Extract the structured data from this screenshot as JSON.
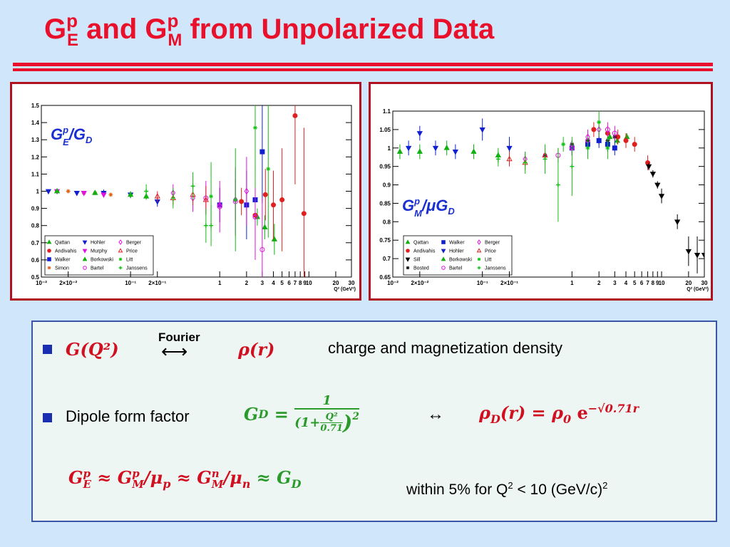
{
  "title": [
    "G",
    "p",
    "E",
    " and G",
    "p",
    "M",
    " from Unpolarized Data"
  ],
  "chart_data": [
    {
      "type": "scatter",
      "xlog": true,
      "xlim": [
        0.01,
        30
      ],
      "xticks": [
        {
          "value": 0.01,
          "label": "10⁻²"
        },
        {
          "value": 0.02,
          "label": "2×10⁻²"
        },
        {
          "value": 0.1,
          "label": "10⁻¹"
        },
        {
          "value": 0.2,
          "label": "2×10⁻¹"
        },
        1,
        2,
        3,
        4,
        5,
        6,
        7,
        8,
        9,
        10,
        20,
        30
      ],
      "ylim": [
        0.5,
        1.5
      ],
      "yticks": [
        0.5,
        0.6,
        0.7,
        0.8,
        0.9,
        1,
        1.1,
        1.2,
        1.3,
        1.4,
        1.5
      ],
      "xlabel": "Q² (GeV²)",
      "annotation": [
        "G",
        "p",
        "E",
        "/G",
        "D"
      ],
      "annotation_color": "#1a2fd0",
      "series": [
        {
          "name": "Qattan",
          "color": "#10b010",
          "marker": "triangle-up",
          "x": [
            2.64,
            3.2,
            4.1
          ],
          "values": [
            0.85,
            0.79,
            0.72
          ],
          "errors": [
            0.05,
            0.07,
            0.09
          ]
        },
        {
          "name": "Andivahis",
          "color": "#e02020",
          "marker": "circle",
          "x": [
            1.75,
            2.5,
            3.25,
            4,
            5,
            7,
            8.8
          ],
          "values": [
            0.94,
            0.86,
            0.98,
            0.92,
            0.95,
            1.44,
            0.87
          ],
          "errors": [
            0.08,
            0.1,
            0.15,
            0.2,
            0.3,
            0.4,
            0.5
          ]
        },
        {
          "name": "Walker",
          "color": "#1020d0",
          "marker": "square",
          "x": [
            1,
            2,
            2.5,
            3
          ],
          "values": [
            0.92,
            0.92,
            0.95,
            1.23
          ],
          "errors": [
            0.1,
            0.2,
            0.2,
            0.3
          ]
        },
        {
          "name": "Simon",
          "color": "#e06010",
          "marker": "star",
          "x": [
            0.015,
            0.02,
            0.03,
            0.04,
            0.06
          ],
          "values": [
            1,
            1,
            0.99,
            0.99,
            0.98
          ],
          "errors": [
            0.01,
            0.01,
            0.01,
            0.01,
            0.01
          ]
        },
        {
          "name": "Hohler",
          "color": "#1020d0",
          "marker": "triangle-down",
          "x": [
            0.012,
            0.025,
            0.05,
            0.1,
            0.2
          ],
          "values": [
            1,
            0.99,
            0.99,
            0.98,
            0.94
          ],
          "errors": [
            0.01,
            0.01,
            0.02,
            0.02,
            0.03
          ]
        },
        {
          "name": "Murphy",
          "color": "#e010e0",
          "marker": "triangle-down",
          "x": [
            0.015,
            0.03,
            0.05
          ],
          "values": [
            1,
            0.99,
            0.98
          ],
          "errors": [
            0.01,
            0.01,
            0.01
          ]
        },
        {
          "name": "Borkowski",
          "color": "#10b010",
          "marker": "triangle-up",
          "x": [
            0.015,
            0.04,
            0.1,
            0.15
          ],
          "values": [
            1,
            0.99,
            0.98,
            0.97
          ],
          "errors": [
            0.01,
            0.01,
            0.02,
            0.02
          ]
        },
        {
          "name": "Bartel",
          "color": "#e010e0",
          "marker": "open-circle",
          "x": [
            0.7,
            1,
            1.5,
            2.5,
            3
          ],
          "values": [
            0.96,
            0.91,
            0.94,
            0.85,
            0.66
          ],
          "errors": [
            0.1,
            0.15,
            0.2,
            0.25,
            0.3
          ]
        },
        {
          "name": "Berger",
          "color": "#e010e0",
          "marker": "diamond",
          "x": [
            0.3,
            0.5,
            1,
            1.5,
            2
          ],
          "values": [
            0.99,
            0.96,
            0.92,
            0.95,
            1
          ],
          "errors": [
            0.05,
            0.08,
            0.1,
            0.12,
            0.2
          ]
        },
        {
          "name": "Price",
          "color": "#e02020",
          "marker": "open-triangle",
          "x": [
            0.2,
            0.3,
            0.5,
            0.7
          ],
          "values": [
            0.97,
            0.96,
            0.98,
            0.95
          ],
          "errors": [
            0.03,
            0.04,
            0.06,
            0.08
          ]
        },
        {
          "name": "Litt",
          "color": "#10c010",
          "marker": "star",
          "x": [
            0.8,
            1.5,
            2.5,
            3.5
          ],
          "values": [
            0.97,
            0.95,
            1.37,
            1.13
          ],
          "errors": [
            0.2,
            0.3,
            0.35,
            0.4
          ]
        },
        {
          "name": "Janssens",
          "color": "#10c010",
          "marker": "cross",
          "x": [
            0.15,
            0.3,
            0.5,
            0.7,
            0.8
          ],
          "values": [
            1,
            0.96,
            1.03,
            0.8,
            0.8
          ],
          "errors": [
            0.04,
            0.06,
            0.08,
            0.1,
            0.12
          ]
        }
      ]
    },
    {
      "type": "scatter",
      "xlog": true,
      "xlim": [
        0.01,
        30
      ],
      "xticks": [
        {
          "value": 0.01,
          "label": "10⁻²"
        },
        {
          "value": 0.02,
          "label": "2×10⁻²"
        },
        {
          "value": 0.1,
          "label": "10⁻¹"
        },
        {
          "value": 0.2,
          "label": "2×10⁻¹"
        },
        1,
        2,
        3,
        4,
        5,
        6,
        7,
        8,
        9,
        10,
        20,
        30
      ],
      "ylim": [
        0.65,
        1.1
      ],
      "yticks": [
        0.65,
        0.7,
        0.75,
        0.8,
        0.85,
        0.9,
        0.95,
        1,
        1.05,
        1.1
      ],
      "xlabel": "Q² (GeV²)",
      "annotation": [
        "G",
        "p",
        "M",
        "/μG",
        "D"
      ],
      "annotation_color": "#1a2fd0",
      "series": [
        {
          "name": "Qattan",
          "color": "#10b010",
          "marker": "triangle-up",
          "x": [
            2.64,
            3.2,
            4.1
          ],
          "values": [
            1.03,
            1.02,
            1.03
          ],
          "errors": [
            0.01,
            0.01,
            0.01
          ]
        },
        {
          "name": "Andivahis",
          "color": "#e02020",
          "marker": "circle",
          "x": [
            1.75,
            2.5,
            3.25,
            4,
            5,
            7
          ],
          "values": [
            1.05,
            1.04,
            1.03,
            1.02,
            1.01,
            0.96
          ],
          "errors": [
            0.02,
            0.02,
            0.02,
            0.02,
            0.02,
            0.02
          ]
        },
        {
          "name": "Sill",
          "color": "#000000",
          "marker": "triangle-down",
          "x": [
            7.2,
            8,
            9,
            10,
            15,
            20,
            25,
            30
          ],
          "values": [
            0.95,
            0.93,
            0.9,
            0.87,
            0.8,
            0.72,
            0.71,
            0.71
          ],
          "errors": [
            0.01,
            0.01,
            0.01,
            0.02,
            0.02,
            0.04,
            0.05,
            0.06
          ]
        },
        {
          "name": "Bosted",
          "color": "#000000",
          "marker": "star",
          "x": [
            0.5,
            1,
            1.5,
            2,
            2.5,
            3
          ],
          "values": [
            0.98,
            1.01,
            1.02,
            1.02,
            1.02,
            1.03
          ],
          "errors": [
            0.01,
            0.01,
            0.01,
            0.01,
            0.01,
            0.01
          ]
        },
        {
          "name": "Walker",
          "color": "#1020d0",
          "marker": "square",
          "x": [
            1,
            1.5,
            2,
            2.5,
            3
          ],
          "values": [
            1,
            1.01,
            1.02,
            1.01,
            1
          ],
          "errors": [
            0.02,
            0.02,
            0.02,
            0.02,
            0.02
          ]
        },
        {
          "name": "Hohler",
          "color": "#1020d0",
          "marker": "triangle-down",
          "x": [
            0.015,
            0.02,
            0.03,
            0.05,
            0.1,
            0.2
          ],
          "values": [
            1,
            1.04,
            1,
            0.99,
            1.05,
            1
          ],
          "errors": [
            0.02,
            0.02,
            0.02,
            0.02,
            0.03,
            0.03
          ]
        },
        {
          "name": "Borkowski",
          "color": "#10b010",
          "marker": "triangle-up",
          "x": [
            0.012,
            0.02,
            0.04,
            0.08,
            0.15
          ],
          "values": [
            0.99,
            0.99,
            1,
            0.99,
            0.98
          ],
          "errors": [
            0.02,
            0.02,
            0.02,
            0.02,
            0.02
          ]
        },
        {
          "name": "Bartel",
          "color": "#e010e0",
          "marker": "open-circle",
          "x": [
            0.7,
            1,
            1.5,
            2.5,
            3
          ],
          "values": [
            0.98,
            1,
            1.02,
            1.05,
            1.04
          ],
          "errors": [
            0.02,
            0.02,
            0.02,
            0.02,
            0.02
          ]
        },
        {
          "name": "Berger",
          "color": "#e010e0",
          "marker": "diamond",
          "x": [
            0.3,
            0.5,
            1,
            1.5,
            2
          ],
          "values": [
            0.97,
            0.98,
            1,
            1.03,
            1.05
          ],
          "errors": [
            0.02,
            0.02,
            0.02,
            0.02,
            0.02
          ]
        },
        {
          "name": "Price",
          "color": "#e02020",
          "marker": "open-triangle",
          "x": [
            0.2,
            0.3,
            0.5
          ],
          "values": [
            0.97,
            0.96,
            0.98
          ],
          "errors": [
            0.02,
            0.02,
            0.02
          ]
        },
        {
          "name": "Litt",
          "color": "#10c010",
          "marker": "star",
          "x": [
            0.8,
            1.5,
            2,
            2.5
          ],
          "values": [
            1.01,
            1,
            1.07,
            1
          ],
          "errors": [
            0.02,
            0.03,
            0.04,
            0.03
          ]
        },
        {
          "name": "Janssens",
          "color": "#10c010",
          "marker": "cross",
          "x": [
            0.15,
            0.3,
            0.5,
            0.7,
            1
          ],
          "values": [
            0.97,
            0.96,
            0.97,
            0.9,
            0.95
          ],
          "errors": [
            0.02,
            0.03,
            0.04,
            0.1,
            0.08
          ]
        }
      ]
    }
  ],
  "bullet1": {
    "lhs": "G(Q²)",
    "arrow_label": "Fourier",
    "arrow": "⟷",
    "rhs": "ρ(r)",
    "text": "charge and magnetization density"
  },
  "bullet2": {
    "text": "Dipole form factor",
    "lhs": [
      "G",
      "D",
      " = "
    ],
    "num": "1",
    "den": [
      "(1+",
      "Q²",
      "0.71",
      ")",
      "2"
    ],
    "arrow": "↔",
    "rhs": [
      "ρ",
      "D",
      "(r) = ρ",
      "0",
      " e",
      "−√0.71r"
    ]
  },
  "line3": {
    "formula": [
      "G",
      "p",
      "E",
      " ≈ G",
      "p",
      "M",
      "/μ",
      "p",
      " ≈ G",
      "n",
      "M",
      "/μ",
      "n",
      " ≈ G",
      "D"
    ],
    "note": [
      "within 5% for Q",
      "2",
      " < 10 (GeV/c)",
      "2"
    ]
  }
}
